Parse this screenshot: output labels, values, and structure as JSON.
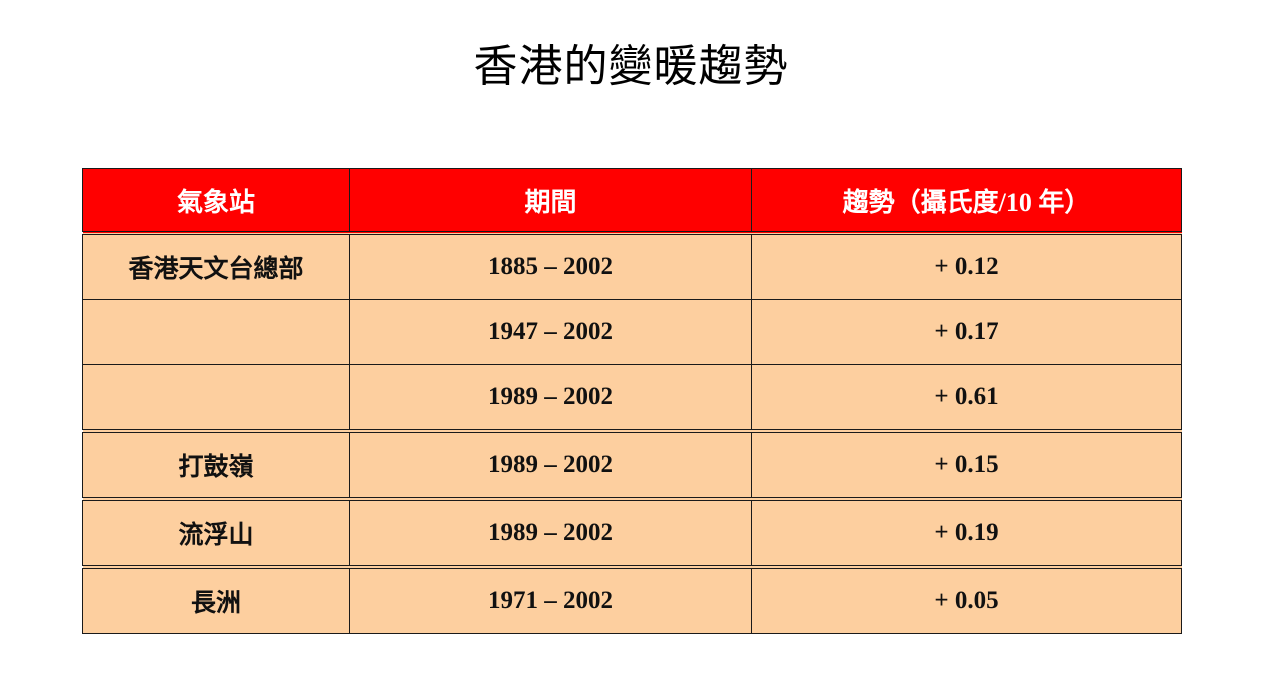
{
  "title": "香港的變暖趨勢",
  "table": {
    "headers": [
      "氣象站",
      "期間",
      "趨勢（攝氏度/10 年）"
    ],
    "rows": [
      {
        "station": "香港天文台總部",
        "period": "1885 – 2002",
        "trend": "+ 0.12"
      },
      {
        "station": "",
        "period": "1947 – 2002",
        "trend": "+ 0.17"
      },
      {
        "station": "",
        "period": "1989 – 2002",
        "trend": "+ 0.61"
      },
      {
        "station": "打鼓嶺",
        "period": "1989 – 2002",
        "trend": "+ 0.15"
      },
      {
        "station": "流浮山",
        "period": "1989 – 2002",
        "trend": "+ 0.19"
      },
      {
        "station": "長洲",
        "period": "1971 – 2002",
        "trend": "+ 0.05"
      }
    ]
  },
  "colors": {
    "header_bg": "#ff0000",
    "header_text": "#ffffff",
    "cell_bg": "#fdcf9f",
    "border": "#1a1a1a"
  }
}
